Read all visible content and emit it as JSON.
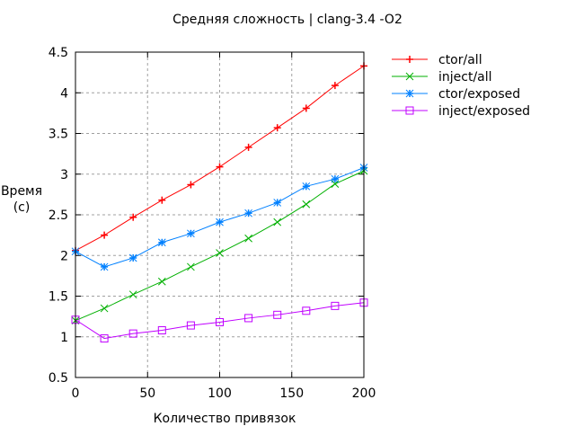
{
  "chart_data": {
    "type": "line",
    "title": "Средняя сложность | clang-3.4 -O2",
    "xlabel": "Количество привязок",
    "ylabel": [
      "Время",
      "(с)"
    ],
    "xlim": [
      0,
      200
    ],
    "ylim": [
      0.5,
      4.5
    ],
    "xticks": [
      0,
      50,
      100,
      150,
      200
    ],
    "yticks": [
      0.5,
      1,
      1.5,
      2,
      2.5,
      3,
      3.5,
      4,
      4.5
    ],
    "ytick_labels": [
      "0.5",
      "1",
      "1.5",
      "2",
      "2.5",
      "3",
      "3.5",
      "4",
      "4.5"
    ],
    "grid": true,
    "legend_position": "outside-top-right",
    "x": [
      0,
      20,
      40,
      60,
      80,
      100,
      120,
      140,
      160,
      180,
      200
    ],
    "series": [
      {
        "name": "ctor/all",
        "color": "#ff0000",
        "marker": "plus",
        "values": [
          2.06,
          2.25,
          2.47,
          2.68,
          2.87,
          3.09,
          3.33,
          3.57,
          3.81,
          4.09,
          4.33
        ]
      },
      {
        "name": "inject/all",
        "color": "#00b000",
        "marker": "cross",
        "values": [
          1.2,
          1.35,
          1.52,
          1.68,
          1.86,
          2.03,
          2.21,
          2.41,
          2.63,
          2.88,
          3.04
        ]
      },
      {
        "name": "ctor/exposed",
        "color": "#0080ff",
        "marker": "star",
        "values": [
          2.05,
          1.86,
          1.97,
          2.16,
          2.27,
          2.41,
          2.52,
          2.65,
          2.85,
          2.94,
          3.08
        ]
      },
      {
        "name": "inject/exposed",
        "color": "#c000ff",
        "marker": "square",
        "values": [
          1.21,
          0.98,
          1.04,
          1.08,
          1.14,
          1.18,
          1.23,
          1.27,
          1.32,
          1.38,
          1.42
        ]
      }
    ]
  }
}
